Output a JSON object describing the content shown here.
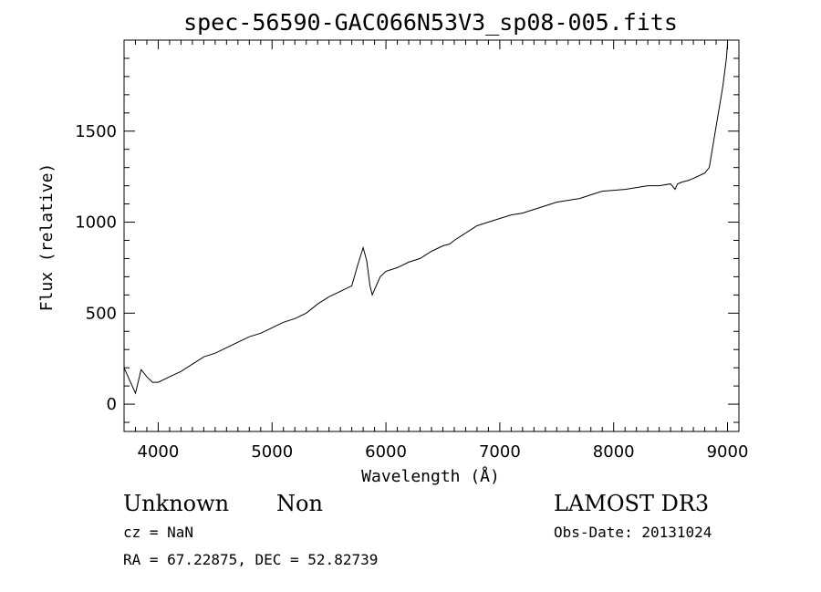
{
  "chart_data": {
    "type": "line",
    "title": "spec-56590-GAC066N53V3_sp08-005.fits",
    "xlabel": "Wavelength (Å)",
    "ylabel": "Flux (relative)",
    "xlim": [
      3700,
      9100
    ],
    "ylim": [
      -150,
      2000
    ],
    "xticks": [
      4000,
      5000,
      6000,
      7000,
      8000,
      9000
    ],
    "yticks": [
      0,
      500,
      1000,
      1500
    ],
    "xtick_labels": [
      "4000",
      "5000",
      "6000",
      "7000",
      "8000",
      "9000"
    ],
    "ytick_labels": [
      "0",
      "500",
      "1000",
      "1500"
    ],
    "grid": false,
    "series": [
      {
        "x": [
          3700,
          3750,
          3800,
          3850,
          3900,
          3950,
          4000,
          4100,
          4200,
          4300,
          4400,
          4500,
          4600,
          4700,
          4800,
          4900,
          5000,
          5100,
          5200,
          5300,
          5400,
          5500,
          5600,
          5700,
          5750,
          5800,
          5830,
          5860,
          5880,
          5900,
          5950,
          6000,
          6100,
          6200,
          6300,
          6400,
          6500,
          6560,
          6600,
          6700,
          6800,
          6900,
          7000,
          7100,
          7200,
          7300,
          7400,
          7500,
          7600,
          7700,
          7800,
          7900,
          8000,
          8100,
          8200,
          8300,
          8400,
          8500,
          8540,
          8560,
          8600,
          8660,
          8700,
          8800,
          8840,
          8880,
          8920,
          8960,
          8990,
          9000
        ],
        "y": [
          200,
          130,
          60,
          190,
          150,
          120,
          120,
          150,
          180,
          220,
          260,
          280,
          310,
          340,
          370,
          390,
          420,
          450,
          470,
          500,
          550,
          590,
          620,
          650,
          760,
          860,
          790,
          650,
          600,
          630,
          700,
          730,
          750,
          780,
          800,
          840,
          870,
          880,
          900,
          940,
          980,
          1000,
          1020,
          1040,
          1050,
          1070,
          1090,
          1110,
          1120,
          1130,
          1150,
          1170,
          1175,
          1180,
          1190,
          1200,
          1200,
          1210,
          1180,
          1210,
          1220,
          1230,
          1240,
          1270,
          1300,
          1450,
          1600,
          1750,
          1900,
          1980
        ]
      }
    ]
  },
  "footer": {
    "object_type": "Unknown",
    "object_subtype": "Non",
    "survey": "LAMOST DR3",
    "cz": "cz = NaN",
    "obs_date": "Obs-Date: 20131024",
    "coords": "RA =  67.22875, DEC =  52.82739"
  }
}
